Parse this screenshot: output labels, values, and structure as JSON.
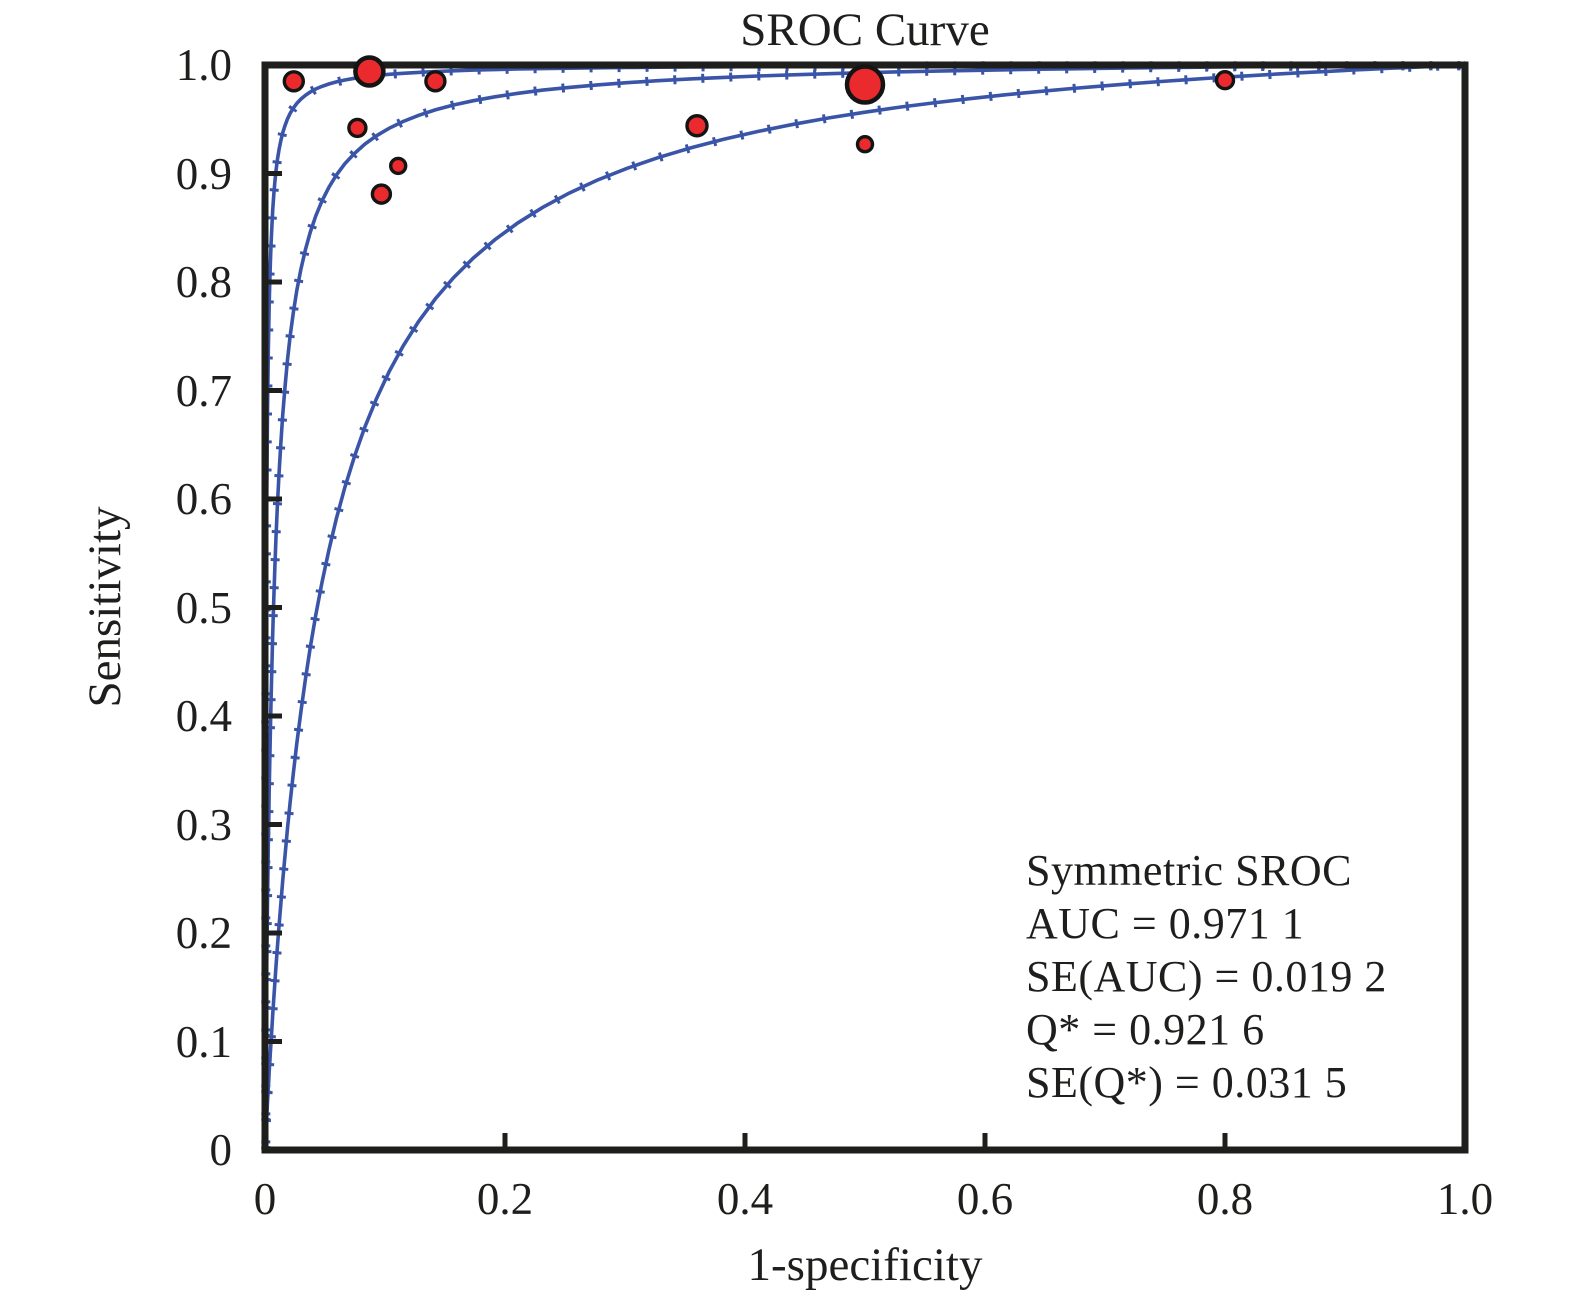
{
  "title": "SROC Curve",
  "axes": {
    "x": {
      "label": "1-specificity",
      "tick_values": [
        0,
        0.2,
        0.4,
        0.6,
        0.8,
        1.0
      ],
      "tick_labels": [
        "0",
        "0.2",
        "0.4",
        "0.6",
        "0.8",
        "1.0"
      ],
      "range": [
        0,
        1
      ]
    },
    "y": {
      "label": "Sensitivity",
      "tick_values": [
        0,
        0.1,
        0.2,
        0.3,
        0.4,
        0.5,
        0.6,
        0.7,
        0.8,
        0.9,
        1.0
      ],
      "tick_labels": [
        "0",
        "0.1",
        "0.2",
        "0.3",
        "0.4",
        "0.5",
        "0.6",
        "0.7",
        "0.8",
        "0.9",
        "1.0"
      ],
      "range": [
        0,
        1
      ]
    }
  },
  "annotation": {
    "lines": [
      "Symmetric SROC",
      "AUC = 0.971 1",
      "SE(AUC) = 0.019 2",
      "Q* = 0.921 6",
      "SE(Q*) = 0.031 5"
    ]
  },
  "chart_data": {
    "type": "scatter",
    "title": "SROC Curve",
    "xlabel": "1-specificity",
    "ylabel": "Sensitivity",
    "xlim": [
      0,
      1
    ],
    "ylim": [
      0,
      1
    ],
    "grid": false,
    "legend_position": "none",
    "statistics": {
      "model": "Symmetric SROC",
      "AUC": "0.971 1",
      "SE_AUC": "0.019 2",
      "Q_star": "0.921 6",
      "SE_Q_star": "0.031 5"
    },
    "points": [
      {
        "x": 0.024,
        "y": 0.985,
        "r": 9.5
      },
      {
        "x": 0.087,
        "y": 0.994,
        "r": 14
      },
      {
        "x": 0.142,
        "y": 0.985,
        "r": 9.5
      },
      {
        "x": 0.077,
        "y": 0.942,
        "r": 8.5
      },
      {
        "x": 0.111,
        "y": 0.907,
        "r": 7.5
      },
      {
        "x": 0.097,
        "y": 0.881,
        "r": 9
      },
      {
        "x": 0.36,
        "y": 0.944,
        "r": 10
      },
      {
        "x": 0.5,
        "y": 0.982,
        "r": 18
      },
      {
        "x": 0.5,
        "y": 0.927,
        "r": 7.5
      },
      {
        "x": 0.8,
        "y": 0.986,
        "r": 8.5
      }
    ],
    "curves": [
      {
        "name": "upper-95ci-curve",
        "model": "logit(Se) = ln(k) + logit(1-Sp)",
        "k": 1000
      },
      {
        "name": "sroc-curve",
        "model": "logit(Se) = ln(k) + logit(1-Sp)",
        "k": 140
      },
      {
        "name": "lower-95ci-curve",
        "model": "logit(Se) = ln(k) + logit(1-Sp)",
        "k": 22
      }
    ],
    "colors": {
      "curve": "#3a55a8",
      "point_fill": "#ea2a2c",
      "point_stroke": "#141414",
      "frame": "#1e1e1c",
      "text": "#1e1e1c"
    }
  }
}
